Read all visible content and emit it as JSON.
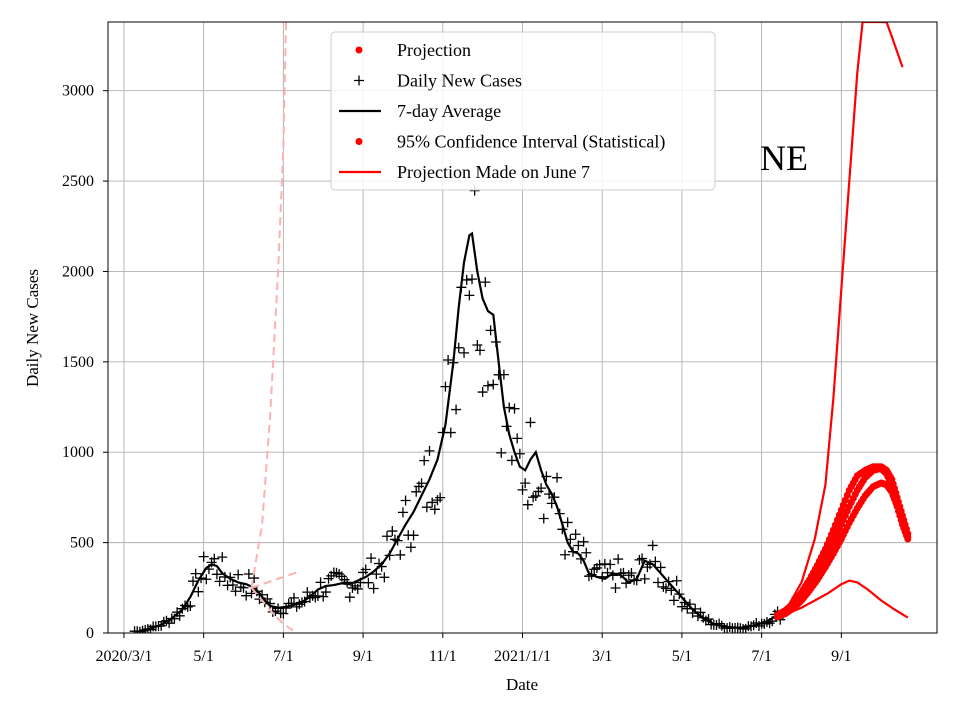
{
  "chart_data": {
    "type": "line",
    "title": "",
    "annotation": "NE",
    "xlabel": "Date",
    "ylabel": "Daily New Cases",
    "xlim": [
      -6,
      306
    ],
    "ylim": [
      0,
      3380
    ],
    "grid": true,
    "legend_position": "top-center",
    "x_ticks": [
      {
        "day": 0,
        "label": "2020/3/1"
      },
      {
        "day": 30,
        "label": "5/1"
      },
      {
        "day": 60,
        "label": "7/1"
      },
      {
        "day": 90,
        "label": "9/1"
      },
      {
        "day": 120,
        "label": "11/1"
      },
      {
        "day": 150,
        "label": "2021/1/1"
      },
      {
        "day": 180,
        "label": "3/1"
      },
      {
        "day": 210,
        "label": "5/1"
      },
      {
        "day": 240,
        "label": "7/1"
      },
      {
        "day": 270,
        "label": "9/1"
      }
    ],
    "y_ticks": [
      0,
      500,
      1000,
      1500,
      2000,
      2500,
      3000
    ],
    "legend": [
      {
        "label": "Projection",
        "marker": "dot",
        "color": "#ff0000"
      },
      {
        "label": "Daily New Cases",
        "marker": "plus",
        "color": "#000000"
      },
      {
        "label": "7-day Average",
        "marker": "line",
        "color": "#000000"
      },
      {
        "label": "95% Confidence Interval (Statistical)",
        "marker": "dot",
        "color": "#ff0000"
      },
      {
        "label": "Projection Made on June 7",
        "marker": "line",
        "color": "#ff0000"
      }
    ],
    "series": [
      {
        "name": "7-day Average",
        "style": "line",
        "color": "#000000",
        "points": [
          [
            6,
            10
          ],
          [
            10,
            25
          ],
          [
            14,
            45
          ],
          [
            18,
            80
          ],
          [
            22,
            130
          ],
          [
            25,
            200
          ],
          [
            28,
            290
          ],
          [
            31,
            360
          ],
          [
            33,
            380
          ],
          [
            35,
            370
          ],
          [
            37,
            330
          ],
          [
            40,
            300
          ],
          [
            43,
            280
          ],
          [
            46,
            270
          ],
          [
            49,
            250
          ],
          [
            51,
            220
          ],
          [
            53,
            180
          ],
          [
            55,
            150
          ],
          [
            58,
            140
          ],
          [
            61,
            145
          ],
          [
            64,
            155
          ],
          [
            67,
            170
          ],
          [
            70,
            200
          ],
          [
            73,
            240
          ],
          [
            76,
            260
          ],
          [
            79,
            265
          ],
          [
            82,
            275
          ],
          [
            85,
            270
          ],
          [
            88,
            290
          ],
          [
            91,
            310
          ],
          [
            94,
            340
          ],
          [
            97,
            380
          ],
          [
            100,
            440
          ],
          [
            103,
            520
          ],
          [
            106,
            600
          ],
          [
            109,
            670
          ],
          [
            112,
            760
          ],
          [
            115,
            850
          ],
          [
            118,
            960
          ],
          [
            121,
            1150
          ],
          [
            124,
            1500
          ],
          [
            126,
            1800
          ],
          [
            128,
            2050
          ],
          [
            130,
            2200
          ],
          [
            131,
            2210
          ],
          [
            133,
            2000
          ],
          [
            135,
            1850
          ],
          [
            137,
            1780
          ],
          [
            139,
            1760
          ],
          [
            141,
            1500
          ],
          [
            143,
            1250
          ],
          [
            145,
            1100
          ],
          [
            147,
            1000
          ],
          [
            149,
            920
          ],
          [
            151,
            900
          ],
          [
            153,
            960
          ],
          [
            155,
            1000
          ],
          [
            157,
            900
          ],
          [
            159,
            820
          ],
          [
            161,
            770
          ],
          [
            163,
            700
          ],
          [
            165,
            600
          ],
          [
            167,
            500
          ],
          [
            169,
            450
          ],
          [
            171,
            440
          ],
          [
            173,
            400
          ],
          [
            175,
            330
          ],
          [
            178,
            310
          ],
          [
            181,
            300
          ],
          [
            184,
            330
          ],
          [
            187,
            320
          ],
          [
            190,
            280
          ],
          [
            193,
            300
          ],
          [
            196,
            400
          ],
          [
            199,
            380
          ],
          [
            202,
            330
          ],
          [
            205,
            280
          ],
          [
            208,
            230
          ],
          [
            211,
            180
          ],
          [
            214,
            130
          ],
          [
            218,
            80
          ],
          [
            222,
            50
          ],
          [
            226,
            35
          ],
          [
            230,
            30
          ],
          [
            234,
            30
          ],
          [
            238,
            45
          ],
          [
            242,
            65
          ],
          [
            246,
            100
          ]
        ]
      },
      {
        "name": "Projection",
        "style": "dots",
        "color": "#ff0000",
        "points": [
          [
            246,
            95
          ],
          [
            249,
            115
          ],
          [
            252,
            150
          ],
          [
            255,
            200
          ],
          [
            258,
            260
          ],
          [
            261,
            330
          ],
          [
            264,
            410
          ],
          [
            267,
            500
          ],
          [
            270,
            600
          ],
          [
            273,
            700
          ],
          [
            276,
            790
          ],
          [
            279,
            860
          ],
          [
            282,
            900
          ],
          [
            285,
            910
          ],
          [
            287,
            880
          ],
          [
            289,
            820
          ],
          [
            291,
            720
          ],
          [
            293,
            620
          ],
          [
            295,
            530
          ]
        ]
      },
      {
        "name": "95% Confidence Interval (Statistical) upper",
        "style": "dots",
        "color": "#ff0000",
        "points": [
          [
            246,
            100
          ],
          [
            249,
            125
          ],
          [
            252,
            165
          ],
          [
            255,
            225
          ],
          [
            258,
            295
          ],
          [
            261,
            375
          ],
          [
            264,
            465
          ],
          [
            267,
            570
          ],
          [
            270,
            680
          ],
          [
            273,
            790
          ],
          [
            276,
            870
          ],
          [
            279,
            900
          ],
          [
            282,
            920
          ],
          [
            285,
            920
          ],
          [
            287,
            900
          ],
          [
            289,
            850
          ],
          [
            291,
            750
          ],
          [
            293,
            650
          ],
          [
            295,
            550
          ]
        ]
      },
      {
        "name": "95% Confidence Interval (Statistical) lower",
        "style": "dots",
        "color": "#ff0000",
        "points": [
          [
            246,
            90
          ],
          [
            249,
            108
          ],
          [
            252,
            138
          ],
          [
            255,
            180
          ],
          [
            258,
            235
          ],
          [
            261,
            295
          ],
          [
            264,
            365
          ],
          [
            267,
            440
          ],
          [
            270,
            520
          ],
          [
            273,
            610
          ],
          [
            276,
            690
          ],
          [
            279,
            760
          ],
          [
            282,
            810
          ],
          [
            285,
            830
          ],
          [
            287,
            820
          ],
          [
            289,
            780
          ],
          [
            291,
            700
          ],
          [
            293,
            600
          ],
          [
            295,
            520
          ]
        ]
      },
      {
        "name": "Projection Made on June 7",
        "style": "line",
        "color": "#ff0000",
        "points": [
          [
            245,
            90
          ],
          [
            250,
            110
          ],
          [
            255,
            140
          ],
          [
            260,
            180
          ],
          [
            265,
            220
          ],
          [
            270,
            270
          ],
          [
            273,
            290
          ],
          [
            276,
            280
          ],
          [
            280,
            240
          ],
          [
            285,
            180
          ],
          [
            290,
            130
          ],
          [
            295,
            85
          ]
        ]
      },
      {
        "name": "Projection Made on June 7 upper",
        "style": "line",
        "color": "#ff0000",
        "points": [
          [
            245,
            95
          ],
          [
            250,
            150
          ],
          [
            255,
            280
          ],
          [
            260,
            520
          ],
          [
            264,
            820
          ],
          [
            267,
            1300
          ],
          [
            270,
            1900
          ],
          [
            273,
            2500
          ],
          [
            276,
            3100
          ],
          [
            278,
            3380
          ],
          [
            287,
            3380
          ],
          [
            289,
            3300
          ],
          [
            293,
            3130
          ]
        ]
      },
      {
        "name": "Earlier projection (Apr)",
        "style": "dashed",
        "color": "#ffb0b0",
        "points": [
          [
            48,
            250
          ],
          [
            52,
            600
          ],
          [
            55,
            1200
          ],
          [
            58,
            2000
          ],
          [
            60,
            2700
          ],
          [
            61,
            3380
          ]
        ]
      },
      {
        "name": "Earlier projection lower",
        "style": "dashed",
        "color": "#ffb0b0",
        "points": [
          [
            48,
            250
          ],
          [
            52,
            180
          ],
          [
            56,
            110
          ],
          [
            60,
            50
          ],
          [
            64,
            10
          ]
        ]
      },
      {
        "name": "Earlier projection mid",
        "style": "dashed",
        "color": "#ffb0b0",
        "points": [
          [
            48,
            250
          ],
          [
            52,
            270
          ],
          [
            56,
            290
          ],
          [
            60,
            310
          ],
          [
            64,
            330
          ],
          [
            66,
            340
          ]
        ]
      }
    ]
  }
}
